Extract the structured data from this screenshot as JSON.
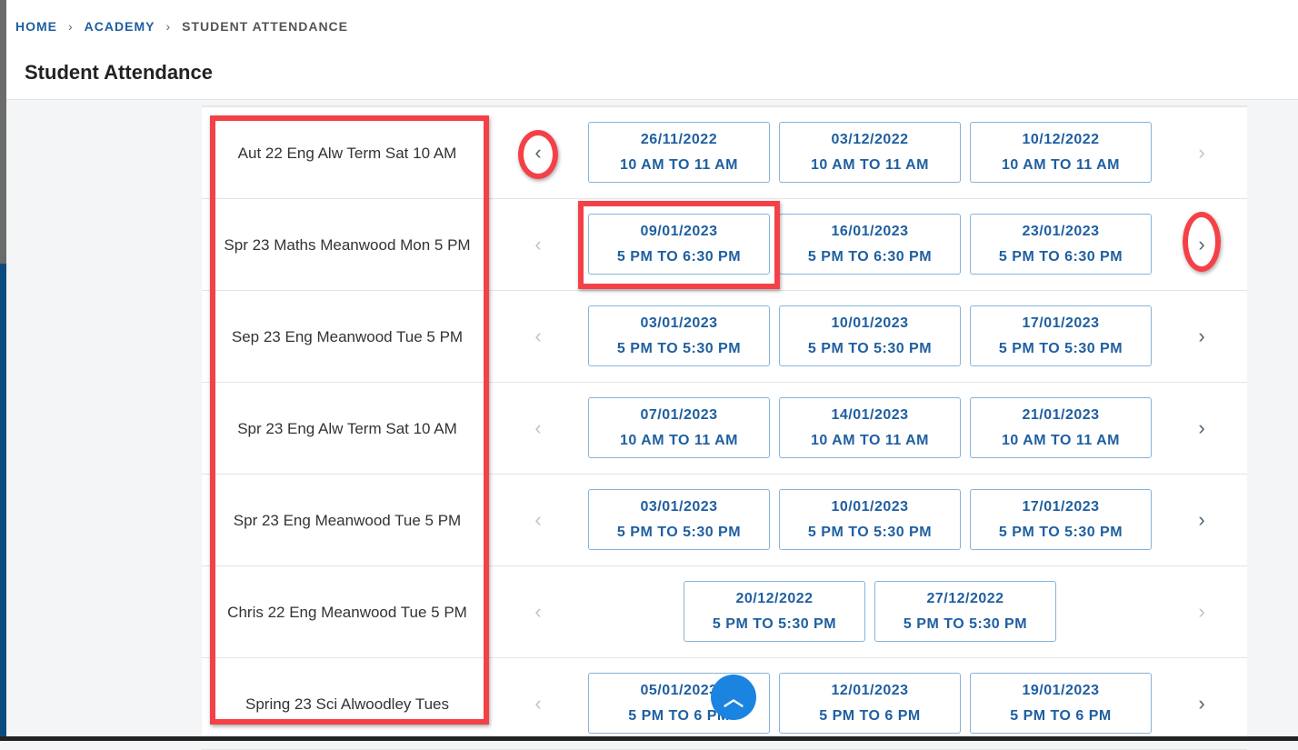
{
  "breadcrumb": [
    {
      "label": "HOME"
    },
    {
      "label": "ACADEMY"
    },
    {
      "label": "STUDENT ATTENDANCE"
    }
  ],
  "page_title": "Student Attendance",
  "colors": {
    "accent": "#1f5fa0",
    "annotation": "#f44148",
    "scroll_button": "#1a84e0"
  },
  "rows": [
    {
      "name": "Aut 22 Eng Alw Term Sat 10 AM",
      "prev_enabled": true,
      "next_enabled": false,
      "slots": [
        {
          "date": "26/11/2022",
          "time": "10 AM TO 11 AM"
        },
        {
          "date": "03/12/2022",
          "time": "10 AM TO 11 AM"
        },
        {
          "date": "10/12/2022",
          "time": "10 AM TO 11 AM"
        }
      ]
    },
    {
      "name": "Spr 23 Maths Meanwood Mon 5 PM",
      "prev_enabled": false,
      "next_enabled": true,
      "slots": [
        {
          "date": "09/01/2023",
          "time": "5 PM TO 6:30 PM"
        },
        {
          "date": "16/01/2023",
          "time": "5 PM TO 6:30 PM"
        },
        {
          "date": "23/01/2023",
          "time": "5 PM TO 6:30 PM"
        }
      ]
    },
    {
      "name": "Sep 23 Eng Meanwood Tue 5 PM",
      "prev_enabled": false,
      "next_enabled": true,
      "slots": [
        {
          "date": "03/01/2023",
          "time": "5 PM TO 5:30 PM"
        },
        {
          "date": "10/01/2023",
          "time": "5 PM TO 5:30 PM"
        },
        {
          "date": "17/01/2023",
          "time": "5 PM TO 5:30 PM"
        }
      ]
    },
    {
      "name": "Spr 23 Eng Alw Term Sat 10 AM",
      "prev_enabled": false,
      "next_enabled": true,
      "slots": [
        {
          "date": "07/01/2023",
          "time": "10 AM TO 11 AM"
        },
        {
          "date": "14/01/2023",
          "time": "10 AM TO 11 AM"
        },
        {
          "date": "21/01/2023",
          "time": "10 AM TO 11 AM"
        }
      ]
    },
    {
      "name": "Spr 23 Eng Meanwood Tue 5 PM",
      "prev_enabled": false,
      "next_enabled": true,
      "slots": [
        {
          "date": "03/01/2023",
          "time": "5 PM TO 5:30 PM"
        },
        {
          "date": "10/01/2023",
          "time": "5 PM TO 5:30 PM"
        },
        {
          "date": "17/01/2023",
          "time": "5 PM TO 5:30 PM"
        }
      ]
    },
    {
      "name": "Chris 22 Eng Meanwood Tue 5 PM",
      "prev_enabled": false,
      "next_enabled": false,
      "slots": [
        {
          "date": "20/12/2022",
          "time": "5 PM TO 5:30 PM"
        },
        {
          "date": "27/12/2022",
          "time": "5 PM TO 5:30 PM"
        }
      ]
    },
    {
      "name": "Spring 23 Sci Alwoodley Tues",
      "prev_enabled": false,
      "next_enabled": true,
      "slots": [
        {
          "date": "05/01/2023",
          "time": "5 PM TO 6 PM"
        },
        {
          "date": "12/01/2023",
          "time": "5 PM TO 6 PM"
        },
        {
          "date": "19/01/2023",
          "time": "5 PM TO 6 PM"
        }
      ]
    }
  ],
  "icons": {
    "prev": "chevron-left-icon",
    "next": "chevron-right-icon",
    "scroll_top": "chevron-up-icon"
  }
}
